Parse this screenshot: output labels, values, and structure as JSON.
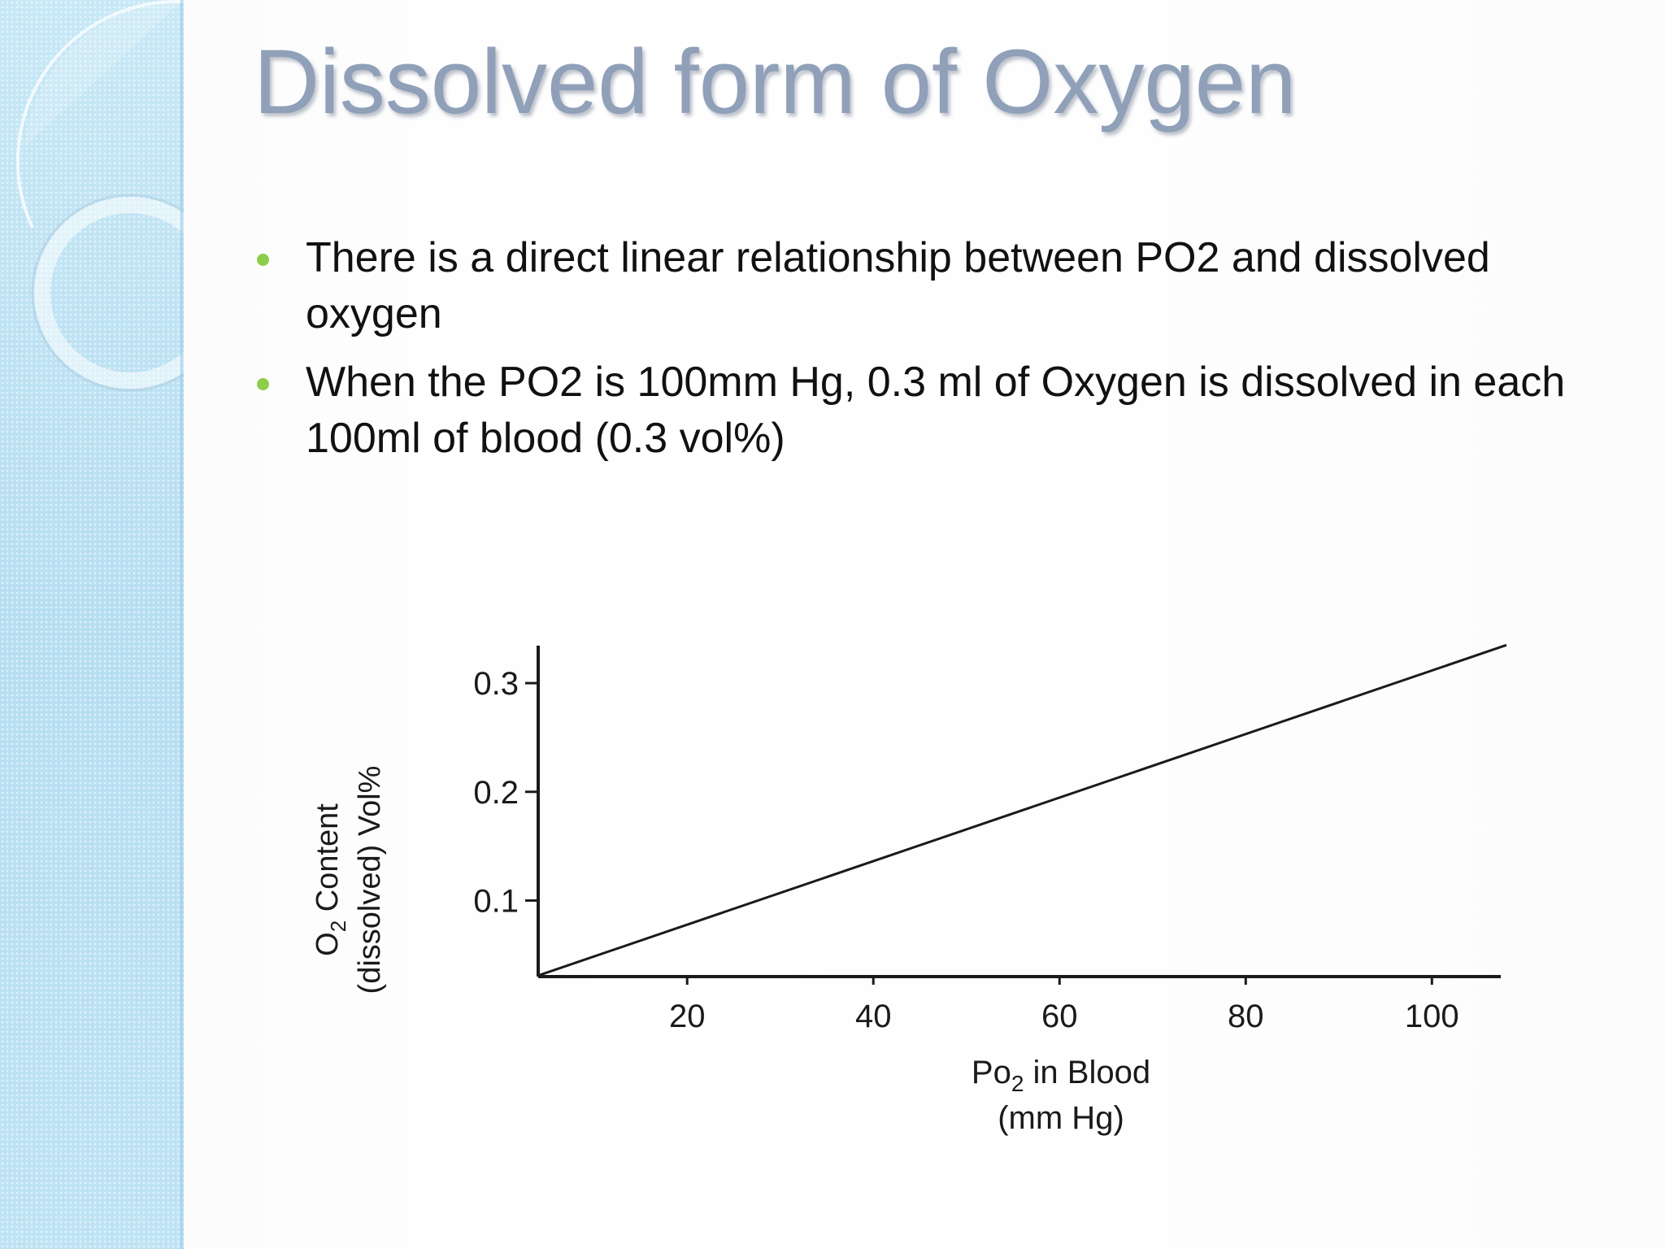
{
  "slide": {
    "title": "Dissolved form of Oxygen",
    "bullets": [
      "There is a direct linear relationship between PO2 and dissolved oxygen",
      "When the PO2 is 100mm Hg, 0.3 ml of Oxygen  is dissolved in each 100ml of blood (0.3 vol%)"
    ],
    "colors": {
      "title": "#8fa0b8",
      "bullet": "#8ccd4a",
      "side_panel": "#bfe3f3"
    }
  },
  "chart_data": {
    "type": "line",
    "title": "",
    "xlabel_line1": "Po",
    "xlabel_sub": "2",
    "xlabel_rest": " in Blood",
    "xlabel_line2": "(mm Hg)",
    "ylabel_line1_main": "O",
    "ylabel_line1_sub": "2",
    "ylabel_line1_rest": " Content",
    "ylabel_line2": "(dissolved) Vol%",
    "xlim": [
      4,
      106
    ],
    "ylim": [
      0.03,
      0.33
    ],
    "x_ticks": [
      20,
      40,
      60,
      80,
      100
    ],
    "x_tick_labels": [
      "20",
      "40",
      "60",
      "80",
      "100"
    ],
    "y_ticks": [
      0.1,
      0.2,
      0.3
    ],
    "y_tick_labels": [
      "0.1",
      "0.2",
      "0.3"
    ],
    "grid": false,
    "series": [
      {
        "x": [
          4,
          108
        ],
        "y": [
          0.031,
          0.335
        ]
      }
    ]
  }
}
